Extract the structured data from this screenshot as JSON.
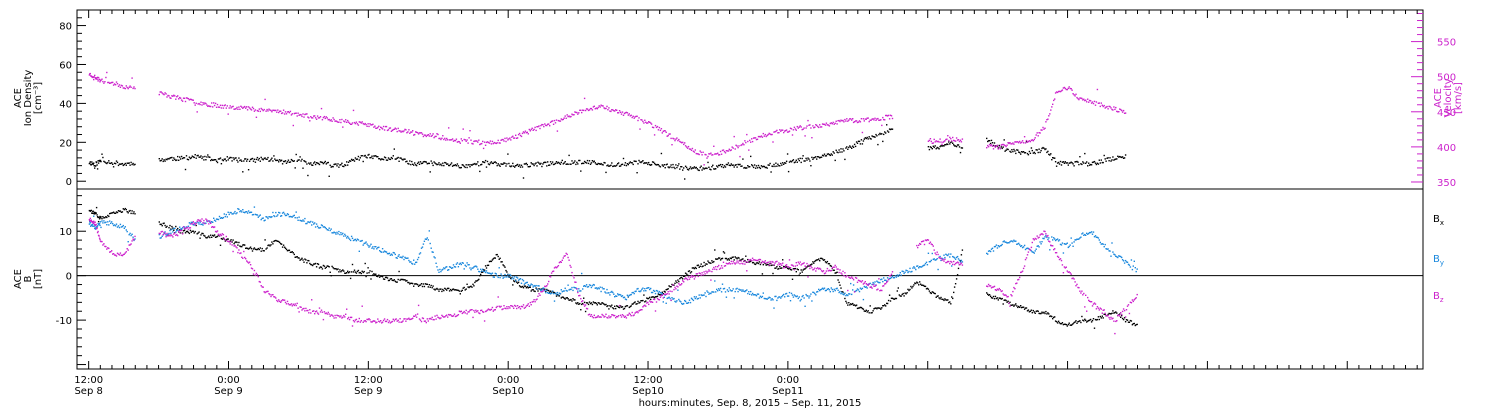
{
  "chart_data": [
    {
      "type": "scatter",
      "panel": "top",
      "ylabel_left": [
        "ACE",
        "Ion Density",
        "[cm⁻³]"
      ],
      "ylabel_right": [
        "ACE",
        "Velocity",
        "[km/s]"
      ],
      "ylim_left": [
        -4,
        88
      ],
      "ylim_right": [
        340,
        595
      ],
      "left_ticks": [
        0,
        20,
        40,
        60,
        80
      ],
      "right_ticks": [
        350,
        400,
        450,
        500,
        550
      ],
      "grid": false,
      "series": [
        {
          "axis": "left",
          "color": "#000000",
          "x": [
            0.0,
            0.5,
            1.0,
            2.0,
            3.0,
            4.0,
            5.0,
            6.0,
            7.0,
            8.0,
            9.0,
            10.0,
            11.0,
            12.0,
            13.0,
            14.0,
            15.0,
            16.0,
            17.0,
            18.0,
            19.0,
            20.0,
            21.0,
            22.0,
            23.0,
            24.0,
            25.0,
            26.0,
            27.0,
            28.0,
            29.0,
            30.0,
            31.0,
            32.0,
            33.0,
            34.0,
            35.0,
            36.0,
            37.0,
            38.0,
            39.0,
            40.0,
            41.0,
            42.0,
            43.0,
            44.0,
            45.0,
            46.0,
            47.0,
            48.0,
            49.0,
            50.0,
            51.0,
            52.0,
            53.0,
            54.0,
            55.0,
            56.0,
            57.0,
            58.0,
            59.0,
            60.0,
            61.0,
            62.0,
            63.0,
            64.0,
            65.0,
            66.0,
            67.0,
            68.0,
            69.0,
            70.0,
            71.0,
            72.0,
            73.0,
            74.0,
            75.0,
            76.0,
            77.0,
            78.0,
            79.0,
            80.0,
            81.0,
            82.0,
            83.0,
            84.0,
            85.0,
            86.0,
            87.0,
            88.0,
            89.0,
            90.0
          ],
          "y": [
            10,
            9,
            11,
            10,
            9,
            10,
            null,
            11,
            12,
            12,
            13,
            12,
            11,
            12,
            11,
            11,
            12,
            11,
            10,
            12,
            9,
            10,
            8,
            9,
            12,
            13,
            12,
            12,
            11,
            9,
            10,
            9,
            9,
            8,
            9,
            10,
            9,
            9,
            8,
            9,
            9,
            10,
            10,
            10,
            10,
            9,
            9,
            9,
            10,
            10,
            8,
            8,
            7,
            7,
            7,
            8,
            9,
            8,
            8,
            8,
            9,
            10,
            11,
            12,
            13,
            15,
            17,
            20,
            23,
            25,
            27,
            null,
            null,
            17,
            18,
            20,
            18,
            null,
            22,
            18,
            16,
            15,
            15,
            17,
            10,
            9,
            10,
            9,
            11,
            12,
            13,
            null
          ]
        },
        {
          "axis": "right",
          "color": "#cc22cc",
          "x": [
            0.0,
            0.5,
            1.0,
            2.0,
            3.0,
            4.0,
            5.0,
            6.0,
            7.0,
            8.0,
            9.0,
            10.0,
            11.0,
            12.0,
            13.0,
            14.0,
            15.0,
            16.0,
            17.0,
            18.0,
            19.0,
            20.0,
            21.0,
            22.0,
            23.0,
            24.0,
            25.0,
            26.0,
            27.0,
            28.0,
            29.0,
            30.0,
            31.0,
            32.0,
            33.0,
            34.0,
            35.0,
            36.0,
            37.0,
            38.0,
            39.0,
            40.0,
            41.0,
            42.0,
            43.0,
            44.0,
            45.0,
            46.0,
            47.0,
            48.0,
            49.0,
            50.0,
            51.0,
            52.0,
            53.0,
            54.0,
            55.0,
            56.0,
            57.0,
            58.0,
            59.0,
            60.0,
            61.0,
            62.0,
            63.0,
            64.0,
            65.0,
            66.0,
            67.0,
            68.0,
            69.0,
            70.0,
            71.0,
            72.0,
            73.0,
            74.0,
            75.0,
            76.0,
            77.0,
            78.0,
            79.0,
            80.0,
            81.0,
            82.0,
            83.0,
            84.0,
            85.0,
            86.0,
            87.0,
            88.0,
            89.0,
            90.0
          ],
          "y": [
            505,
            500,
            495,
            492,
            487,
            484,
            null,
            478,
            473,
            469,
            466,
            462,
            460,
            458,
            457,
            455,
            454,
            452,
            450,
            447,
            444,
            442,
            440,
            437,
            435,
            432,
            428,
            426,
            424,
            420,
            418,
            415,
            412,
            410,
            408,
            406,
            408,
            412,
            418,
            425,
            432,
            436,
            445,
            450,
            455,
            460,
            452,
            448,
            442,
            435,
            425,
            415,
            405,
            395,
            388,
            392,
            398,
            405,
            412,
            418,
            422,
            425,
            428,
            430,
            432,
            434,
            440,
            438,
            440,
            442,
            444,
            null,
            null,
            408,
            410,
            412,
            411,
            null,
            402,
            400,
            405,
            408,
            412,
            430,
            480,
            485,
            470,
            465,
            460,
            455,
            448,
            null
          ]
        }
      ]
    },
    {
      "type": "scatter",
      "panel": "bottom",
      "ylabel_left": [
        "ACE",
        "B",
        "[nT]"
      ],
      "ylim": [
        -21,
        19.5
      ],
      "left_ticks": [
        -10,
        0,
        10
      ],
      "zero_line": true,
      "grid": false,
      "legend_position": "right",
      "series": [
        {
          "name": "Bx",
          "label_main": "B",
          "label_sub": "x",
          "color": "#000000",
          "x": [
            0.0,
            0.5,
            1.0,
            2.0,
            3.0,
            4.0,
            5.0,
            6.0,
            7.0,
            8.0,
            9.0,
            10.0,
            11.0,
            12.0,
            13.0,
            14.0,
            15.0,
            16.0,
            17.0,
            18.0,
            19.0,
            20.0,
            21.0,
            22.0,
            23.0,
            24.0,
            25.0,
            26.0,
            27.0,
            28.0,
            29.0,
            30.0,
            31.0,
            32.0,
            33.0,
            34.0,
            35.0,
            36.0,
            37.0,
            38.0,
            39.0,
            40.0,
            41.0,
            42.0,
            43.0,
            44.0,
            45.0,
            46.0,
            47.0,
            48.0,
            49.0,
            50.0,
            51.0,
            52.0,
            53.0,
            54.0,
            55.0,
            56.0,
            57.0,
            58.0,
            59.0,
            60.0,
            61.0,
            62.0,
            63.0,
            64.0,
            65.0,
            66.0,
            67.0,
            68.0,
            69.0,
            70.0,
            71.0,
            72.0,
            73.0,
            74.0,
            75.0,
            76.0,
            77.0,
            78.0,
            79.0,
            80.0,
            81.0,
            82.0,
            83.0,
            84.0,
            85.0,
            86.0,
            87.0,
            88.0,
            89.0,
            90.0
          ],
          "y": [
            15,
            14,
            13,
            14,
            15,
            14,
            null,
            12,
            11,
            10,
            10,
            9,
            9,
            8,
            7,
            6,
            6,
            8,
            6,
            4,
            3,
            2,
            2,
            1,
            1,
            1,
            0,
            -1,
            -1,
            -2,
            -2,
            -3,
            -3,
            -3,
            -2,
            2,
            5,
            0,
            -2,
            -3,
            -3,
            -4,
            -5,
            -6,
            -6,
            -6,
            -7,
            -7,
            -6,
            -5,
            -4,
            -2,
            0,
            2,
            3,
            4,
            4,
            4,
            3,
            3,
            2,
            2,
            1,
            3,
            4,
            1,
            -6,
            -7,
            -8,
            -7,
            -5,
            -4,
            -1,
            -3,
            -5,
            -6,
            7,
            null,
            -4,
            -5,
            -6,
            -7,
            -8,
            -8,
            -10,
            -11,
            -10,
            -10,
            -9,
            -8,
            -10,
            -11
          ]
        },
        {
          "name": "By",
          "label_main": "B",
          "label_sub": "y",
          "color": "#1a88dd",
          "x": [
            0.0,
            0.5,
            1.0,
            2.0,
            3.0,
            4.0,
            5.0,
            6.0,
            7.0,
            8.0,
            9.0,
            10.0,
            11.0,
            12.0,
            13.0,
            14.0,
            15.0,
            16.0,
            17.0,
            18.0,
            19.0,
            20.0,
            21.0,
            22.0,
            23.0,
            24.0,
            25.0,
            26.0,
            27.0,
            28.0,
            29.0,
            30.0,
            31.0,
            32.0,
            33.0,
            34.0,
            35.0,
            36.0,
            37.0,
            38.0,
            39.0,
            40.0,
            41.0,
            42.0,
            43.0,
            44.0,
            45.0,
            46.0,
            47.0,
            48.0,
            49.0,
            50.0,
            51.0,
            52.0,
            53.0,
            54.0,
            55.0,
            56.0,
            57.0,
            58.0,
            59.0,
            60.0,
            61.0,
            62.0,
            63.0,
            64.0,
            65.0,
            66.0,
            67.0,
            68.0,
            69.0,
            70.0,
            71.0,
            72.0,
            73.0,
            74.0,
            75.0,
            76.0,
            77.0,
            78.0,
            79.0,
            80.0,
            81.0,
            82.0,
            83.0,
            84.0,
            85.0,
            86.0,
            87.0,
            88.0,
            89.0,
            90.0
          ],
          "y": [
            12,
            11,
            12,
            12,
            11,
            8,
            null,
            9,
            10,
            11,
            12,
            12,
            13,
            14,
            15,
            14,
            13,
            14,
            14,
            13,
            12,
            11,
            10,
            9,
            8,
            7,
            6,
            5,
            4,
            3,
            9,
            1,
            2,
            3,
            2,
            1,
            0,
            0,
            -1,
            -2,
            -3,
            -4,
            -3,
            -3,
            -2,
            -3,
            -4,
            -5,
            -3,
            -3,
            -4,
            -5,
            -6,
            -5,
            -4,
            -3,
            -3,
            -3,
            -4,
            -5,
            -5,
            -4,
            -5,
            -4,
            -3,
            -3,
            -4,
            -3,
            -2,
            -1,
            0,
            1,
            2,
            3,
            4,
            5,
            3,
            null,
            5,
            7,
            8,
            7,
            5,
            9,
            8,
            7,
            9,
            10,
            7,
            5,
            3,
            1
          ]
        },
        {
          "name": "Bz",
          "label_main": "B",
          "label_sub": "z",
          "color": "#cc22cc",
          "x": [
            0.0,
            0.5,
            1.0,
            2.0,
            3.0,
            4.0,
            5.0,
            6.0,
            7.0,
            8.0,
            9.0,
            10.0,
            11.0,
            12.0,
            13.0,
            14.0,
            15.0,
            16.0,
            17.0,
            18.0,
            19.0,
            20.0,
            21.0,
            22.0,
            23.0,
            24.0,
            25.0,
            26.0,
            27.0,
            28.0,
            29.0,
            30.0,
            31.0,
            32.0,
            33.0,
            34.0,
            35.0,
            36.0,
            37.0,
            38.0,
            39.0,
            40.0,
            41.0,
            42.0,
            43.0,
            44.0,
            45.0,
            46.0,
            47.0,
            48.0,
            49.0,
            50.0,
            51.0,
            52.0,
            53.0,
            54.0,
            55.0,
            56.0,
            57.0,
            58.0,
            59.0,
            60.0,
            61.0,
            62.0,
            63.0,
            64.0,
            65.0,
            66.0,
            67.0,
            68.0,
            69.0,
            70.0,
            71.0,
            72.0,
            73.0,
            74.0,
            75.0,
            76.0,
            77.0,
            78.0,
            79.0,
            80.0,
            81.0,
            82.0,
            83.0,
            84.0,
            85.0,
            86.0,
            87.0,
            88.0,
            89.0,
            90.0
          ],
          "y": [
            13,
            12,
            8,
            5,
            5,
            9,
            null,
            10,
            9,
            10,
            12,
            13,
            10,
            8,
            5,
            2,
            -3,
            -5,
            -6,
            -7,
            -8,
            -8,
            -9,
            -9,
            -10,
            -10,
            -10,
            -10,
            -10,
            -9,
            -10,
            -9,
            -9,
            -8,
            -8,
            -8,
            -7,
            -7,
            -7,
            -6,
            -3,
            2,
            5,
            -4,
            -9,
            -9,
            -9,
            -9,
            -8,
            -6,
            -5,
            -3,
            -1,
            0,
            1,
            2,
            3,
            3,
            4,
            3,
            3,
            2,
            3,
            2,
            1,
            2,
            0,
            -1,
            -2,
            -3,
            1,
            null,
            7,
            8,
            4,
            3,
            3,
            null,
            -2,
            -3,
            -5,
            1,
            8,
            10,
            5,
            1,
            -3,
            -6,
            -8,
            -10,
            -7,
            -4
          ]
        }
      ]
    }
  ],
  "x_axis": {
    "range_hours": [
      -1.0,
      114.5
    ],
    "ticks": [
      {
        "hour": 0,
        "time": "12:00",
        "date": "Sep 8"
      },
      {
        "hour": 12,
        "time": "0:00",
        "date": "Sep 9"
      },
      {
        "hour": 24,
        "time": "12:00",
        "date": "Sep 9"
      },
      {
        "hour": 36,
        "time": "0:00",
        "date": "Sep10"
      },
      {
        "hour": 48,
        "time": "12:00",
        "date": "Sep10"
      },
      {
        "hour": 60,
        "time": "0:00",
        "date": "Sep11"
      }
    ],
    "caption": "hours:minutes, Sep.  8, 2015 – Sep. 11, 2015"
  }
}
